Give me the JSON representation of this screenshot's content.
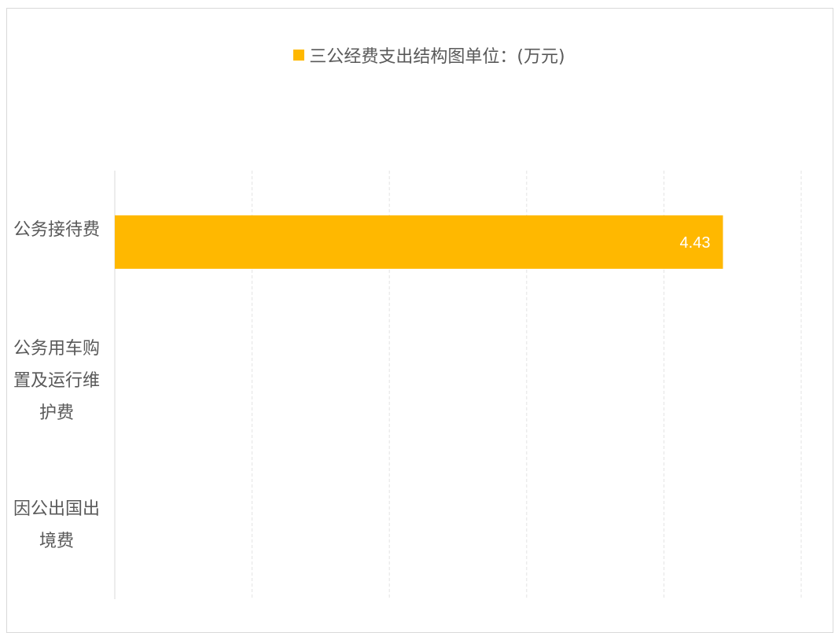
{
  "chart_data": {
    "type": "bar",
    "orientation": "horizontal",
    "categories": [
      "公务接待费",
      "公务用车购置及运行维护费",
      "因公出国出境费"
    ],
    "series": [
      {
        "name": "三公经费支出结构图单位：(万元)",
        "values": [
          4.43,
          null,
          null
        ],
        "color": "#FFB800"
      }
    ],
    "data_labels": [
      "4.43",
      "",
      ""
    ],
    "xlim": [
      0,
      5
    ],
    "grid": true,
    "legend_position": "top"
  }
}
